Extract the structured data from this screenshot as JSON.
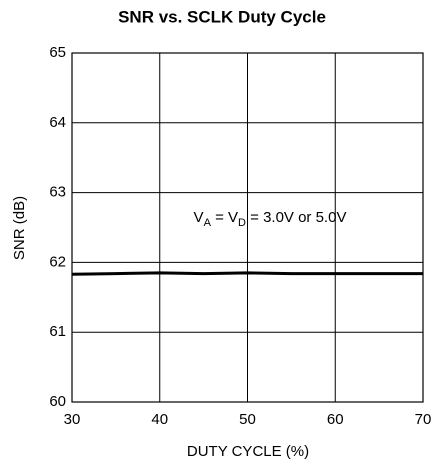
{
  "chart_data": {
    "type": "line",
    "title": "SNR vs. SCLK Duty Cycle",
    "xlabel": "DUTY CYCLE (%)",
    "ylabel": "SNR (dB)",
    "annotation": [
      {
        "text": "V"
      },
      {
        "text": "A",
        "sub": true
      },
      {
        "text": " = V"
      },
      {
        "text": "D",
        "sub": true
      },
      {
        "text": " = 3.0V or 5.0V"
      }
    ],
    "x": [
      30,
      35,
      40,
      45,
      50,
      55,
      60,
      65,
      70
    ],
    "series": [
      {
        "color": "#000000",
        "values": [
          61.83,
          61.84,
          61.85,
          61.84,
          61.85,
          61.84,
          61.84,
          61.84,
          61.84
        ]
      }
    ],
    "xlim": [
      30,
      70
    ],
    "xticks": [
      30,
      40,
      50,
      60,
      70
    ],
    "ylim": [
      60,
      65
    ],
    "yticks": [
      60,
      61,
      62,
      63,
      64,
      65
    ],
    "grid": true
  }
}
